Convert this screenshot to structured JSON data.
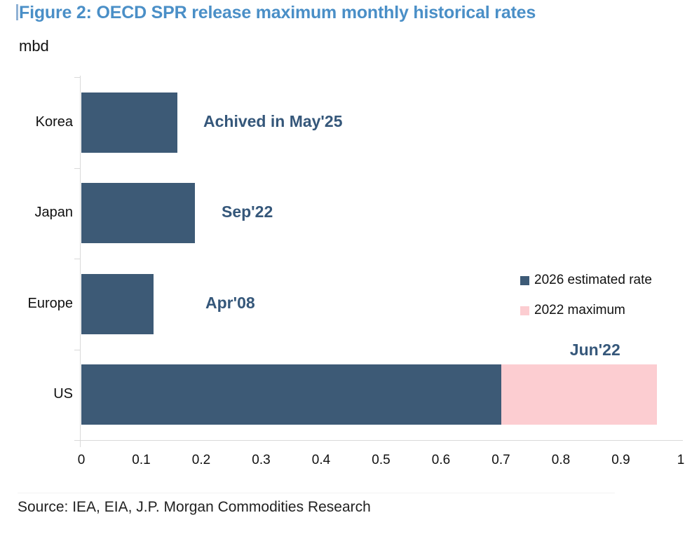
{
  "figure": {
    "title": "Figure 2: OECD SPR release maximum monthly historical rates",
    "unit_label": "mbd",
    "source": "Source: IEA, EIA, J.P. Morgan Commodities Research"
  },
  "legend": [
    {
      "label": "2026 estimated rate",
      "color": "#3d5a76"
    },
    {
      "label": "2022 maximum",
      "color": "#fccdd1"
    }
  ],
  "chart_data": {
    "type": "bar",
    "orientation": "horizontal",
    "title": "Figure 2: OECD SPR release maximum monthly historical rates",
    "unit": "mbd",
    "categories": [
      "Korea",
      "Japan",
      "Europe",
      "US"
    ],
    "series": [
      {
        "name": "2026 estimated rate",
        "color": "#3d5a76",
        "values": [
          0.16,
          0.19,
          0.12,
          0.7
        ]
      },
      {
        "name": "2022 maximum",
        "color": "#fccdd1",
        "values": [
          null,
          null,
          null,
          0.96
        ]
      }
    ],
    "annotations": [
      {
        "category": "Korea",
        "text": "Achived in May'25"
      },
      {
        "category": "Japan",
        "text": "Sep'22"
      },
      {
        "category": "Europe",
        "text": "Apr'08"
      },
      {
        "category": "US",
        "text": "Jun'22"
      }
    ],
    "xlim": [
      0,
      1
    ],
    "xticks": [
      0,
      0.1,
      0.2,
      0.3,
      0.4,
      0.5,
      0.6,
      0.7,
      0.8,
      0.9,
      1
    ],
    "tick_labels": [
      "0",
      "0.1",
      "0.2",
      "0.3",
      "0.4",
      "0.5",
      "0.6",
      "0.7",
      "0.8",
      "0.9",
      "1"
    ],
    "grid": false,
    "legend_position": "right-middle",
    "axis_color": "#d9d9d9",
    "annotation_color": "#35577a",
    "title_color": "#4a8fc7"
  }
}
